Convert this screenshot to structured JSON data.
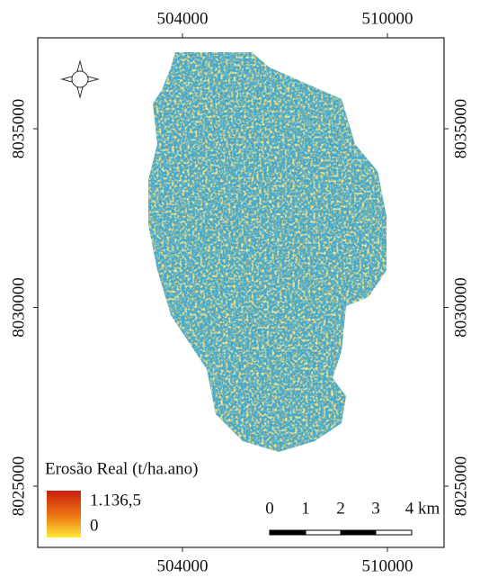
{
  "map": {
    "x_ticks": [
      504000,
      510000
    ],
    "y_ticks": [
      8035000,
      8030000,
      8025000
    ],
    "legend": {
      "title": "Erosão Real (t/ha.ano)",
      "max_label": "1.136,5",
      "min_label": "0"
    },
    "scale_bar": {
      "labels": [
        "0",
        "1",
        "2",
        "3",
        "4 km"
      ]
    }
  }
}
